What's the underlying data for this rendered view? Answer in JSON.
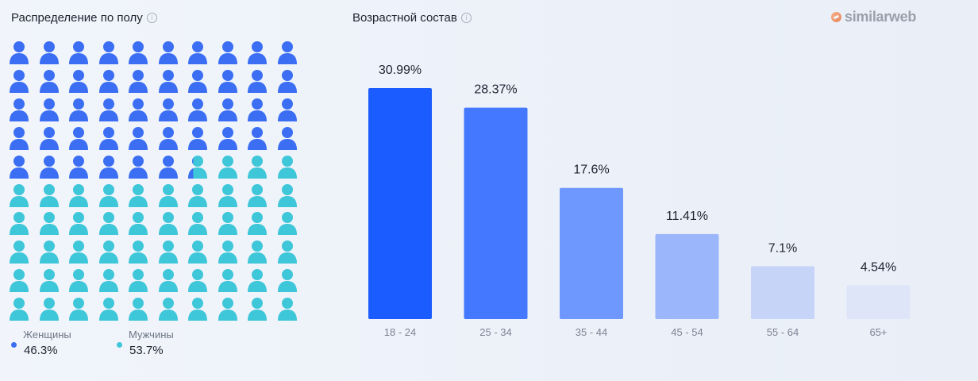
{
  "brand": {
    "name": "similarweb"
  },
  "gender": {
    "title": "Распределение по полу",
    "info_icon": "info-icon",
    "total_icons": 100,
    "icon": "person-icon",
    "female": {
      "label": "Женщины",
      "value": "46.3%",
      "share": 46.3,
      "color": "#3b6ef3"
    },
    "male": {
      "label": "Мужчины",
      "value": "53.7%",
      "share": 53.7,
      "color": "#3ec6d9"
    }
  },
  "age": {
    "title": "Возрастной состав",
    "info_icon": "info-icon"
  },
  "chart_data": {
    "type": "bar",
    "title": "Возрастной состав",
    "categories": [
      "18 - 24",
      "25 - 34",
      "35 - 44",
      "45 - 54",
      "55 - 64",
      "65+"
    ],
    "values": [
      30.99,
      28.37,
      17.6,
      11.41,
      7.1,
      4.54
    ],
    "value_labels": [
      "30.99%",
      "28.37%",
      "17.6%",
      "11.41%",
      "7.1%",
      "4.54%"
    ],
    "colors": [
      "#1a5cff",
      "#4479ff",
      "#6f98ff",
      "#9cb6fb",
      "#c6d4f8",
      "#dee5f8"
    ],
    "ylim": [
      0,
      30.99
    ],
    "grid": false,
    "legend": "none"
  }
}
